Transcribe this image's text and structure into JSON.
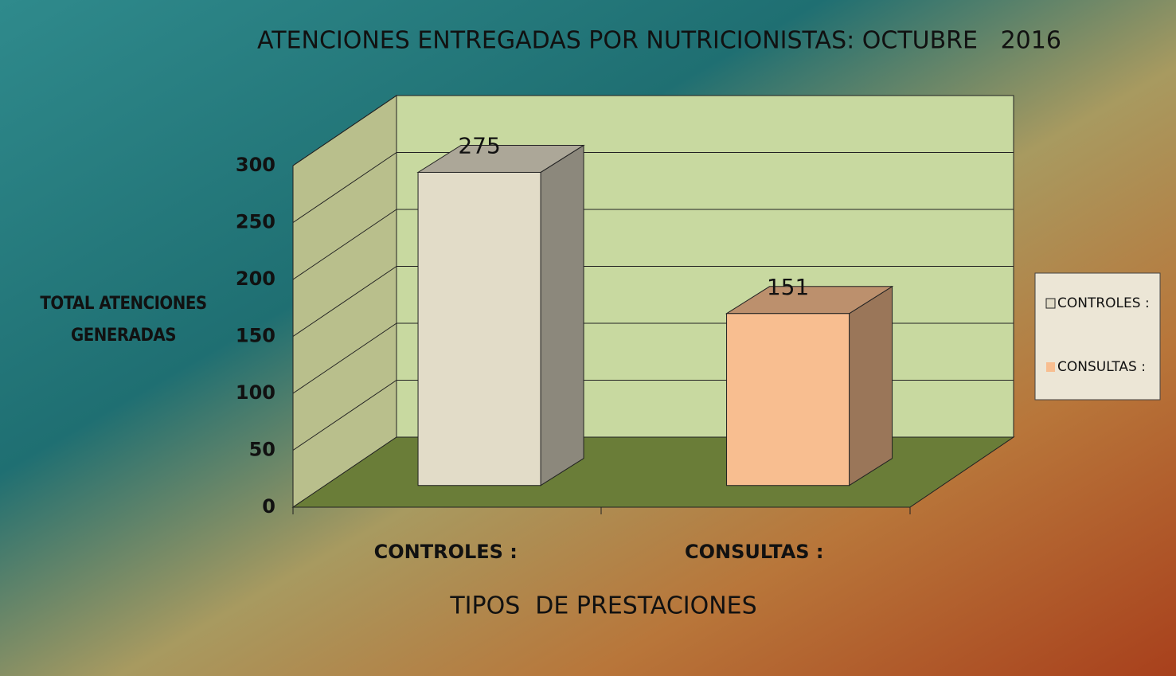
{
  "chart_data": {
    "type": "bar3d",
    "title": "ATENCIONES ENTREGADAS POR NUTRICIONISTAS: OCTUBRE   2016",
    "y_label": "TOTAL ATENCIONES GENERADAS",
    "x_label": "TIPOS  DE PRESTACIONES",
    "categories": [
      "CONTROLES :",
      "CONSULTAS :"
    ],
    "values": [
      275,
      151
    ],
    "colors": [
      "#e2dcc8",
      "#f8be90"
    ],
    "ylim": [
      0,
      300
    ],
    "yticks": [
      0,
      50,
      100,
      150,
      200,
      250,
      300
    ],
    "grid": true,
    "legend": "right"
  }
}
